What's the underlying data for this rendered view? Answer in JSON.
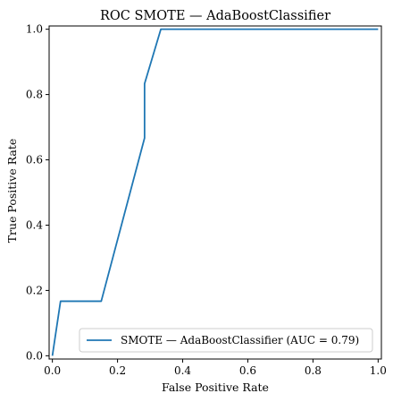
{
  "chart_data": {
    "type": "line",
    "title": "ROC SMOTE — AdaBoostClassifier",
    "xlabel": "False Positive Rate",
    "ylabel": "True Positive Rate",
    "xlim": [
      -0.01,
      1.01
    ],
    "ylim": [
      -0.01,
      1.01
    ],
    "grid": false,
    "legend_position": "lower-right",
    "x_ticks": [
      0.0,
      0.2,
      0.4,
      0.6,
      0.8,
      1.0
    ],
    "y_ticks": [
      0.0,
      0.2,
      0.4,
      0.6,
      0.8,
      1.0
    ],
    "x_tick_labels": [
      "0.0",
      "0.2",
      "0.4",
      "0.6",
      "0.8",
      "1.0"
    ],
    "y_tick_labels": [
      "0.0",
      "0.2",
      "0.4",
      "0.6",
      "0.8",
      "1.0"
    ],
    "series": [
      {
        "name": "SMOTE — AdaBoostClassifier (AUC = 0.79)",
        "color": "#1f77b4",
        "x": [
          0.0,
          0.025,
          0.15,
          0.283,
          0.283,
          0.283,
          0.333,
          1.0
        ],
        "y": [
          0.0,
          0.167,
          0.167,
          0.667,
          0.833,
          0.833,
          1.0,
          1.0
        ]
      }
    ]
  }
}
